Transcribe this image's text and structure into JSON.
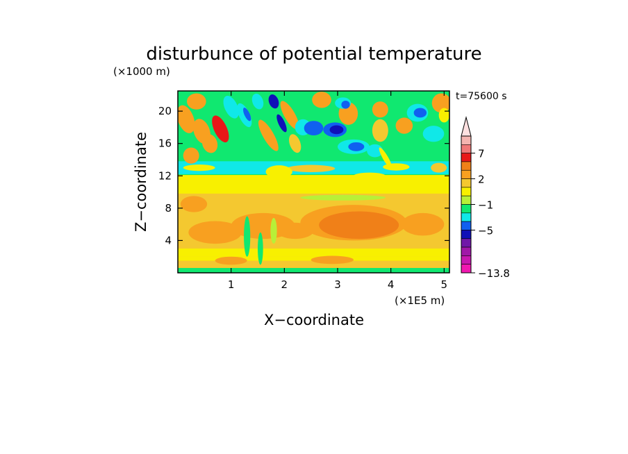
{
  "chart_data": {
    "type": "heatmap",
    "title": "disturbunce of potential temperature",
    "time_label": "t=75600 s",
    "xlabel": "X−coordinate",
    "ylabel": "Z−coordinate",
    "x_unit": "(×1E5 m)",
    "y_unit": "(×1000 m)",
    "xlim": [
      0,
      5.1
    ],
    "ylim": [
      0,
      22.5
    ],
    "x_ticks": [
      "1",
      "2",
      "3",
      "4",
      "5"
    ],
    "x_tick_values": [
      1,
      2,
      3,
      4,
      5
    ],
    "y_ticks": [
      "4",
      "8",
      "12",
      "16",
      "20"
    ],
    "y_tick_values": [
      4,
      8,
      12,
      16,
      20
    ],
    "colorbar": {
      "tick_labels": [
        "7",
        "2",
        "−1",
        "−5",
        "−13.8"
      ],
      "levels_desc": [
        {
          "color": "#f4b4b0"
        },
        {
          "color": "#f07878"
        },
        {
          "color": "#e81818"
        },
        {
          "color": "#f08018"
        },
        {
          "color": "#f8a020"
        },
        {
          "color": "#f4c830"
        },
        {
          "color": "#f8f000"
        },
        {
          "color": "#b8f038"
        },
        {
          "color": "#10e870"
        },
        {
          "color": "#10e8e8"
        },
        {
          "color": "#1060f0"
        },
        {
          "color": "#1010b8"
        },
        {
          "color": "#7018a8"
        },
        {
          "color": "#a018a8"
        },
        {
          "color": "#c818b0"
        },
        {
          "color": "#f018b0"
        }
      ]
    }
  }
}
